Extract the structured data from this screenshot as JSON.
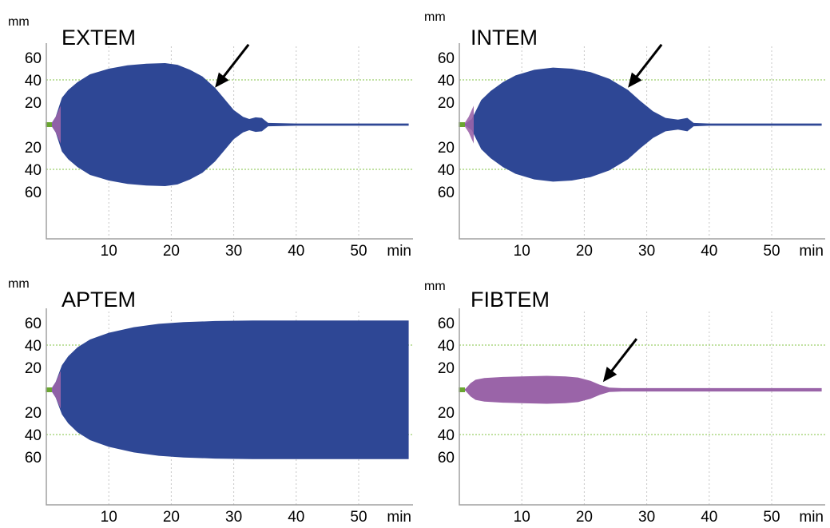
{
  "colors": {
    "amplitude": "#2e4795",
    "fibtem": "#9a64a8",
    "onset": "#9a64a8",
    "baseline_start": "#6aa631",
    "grid_h": "#9ccf6b",
    "arrow": "#000000"
  },
  "chart_data": [
    {
      "type": "area",
      "title": "EXTEM",
      "ylabel": "mm",
      "xlabel": "min",
      "x_ticks": [
        10,
        20,
        30,
        40,
        50
      ],
      "y_ticks_upper": [
        60,
        40,
        20
      ],
      "y_ticks_lower": [
        20,
        40,
        60
      ],
      "xlim": [
        0,
        58
      ],
      "ylim": [
        -70,
        70
      ],
      "grid_h": [
        40,
        -40
      ],
      "fill": "amplitude",
      "arrow": true,
      "arrow_target": [
        27,
        33
      ],
      "envelope": [
        [
          0,
          0
        ],
        [
          0.8,
          1
        ],
        [
          1.5,
          7
        ],
        [
          2.5,
          24
        ],
        [
          3.5,
          31
        ],
        [
          5,
          38
        ],
        [
          7,
          45
        ],
        [
          10,
          50
        ],
        [
          13,
          53
        ],
        [
          16,
          54.5
        ],
        [
          19,
          55
        ],
        [
          21,
          53.5
        ],
        [
          23,
          49
        ],
        [
          25,
          43
        ],
        [
          27,
          33
        ],
        [
          28.5,
          23
        ],
        [
          30,
          13
        ],
        [
          31.5,
          7
        ],
        [
          32.5,
          5
        ],
        [
          33.5,
          6.5
        ],
        [
          34.5,
          6
        ],
        [
          35.5,
          1.5
        ],
        [
          40,
          1
        ],
        [
          58,
          1
        ]
      ]
    },
    {
      "type": "area",
      "title": "INTEM",
      "ylabel": "mm",
      "xlabel": "min",
      "x_ticks": [
        10,
        20,
        30,
        40,
        50
      ],
      "y_ticks_upper": [
        60,
        40,
        20
      ],
      "y_ticks_lower": [
        20,
        40,
        60
      ],
      "xlim": [
        0,
        58
      ],
      "ylim": [
        -70,
        70
      ],
      "grid_h": [
        40,
        -40
      ],
      "fill": "amplitude",
      "arrow": true,
      "arrow_target": [
        27,
        33
      ],
      "envelope": [
        [
          0,
          0
        ],
        [
          1,
          1
        ],
        [
          2,
          5
        ],
        [
          3.5,
          22
        ],
        [
          5,
          30
        ],
        [
          7,
          38
        ],
        [
          9,
          44
        ],
        [
          12,
          49
        ],
        [
          15,
          51
        ],
        [
          18,
          50
        ],
        [
          21,
          47
        ],
        [
          24,
          41
        ],
        [
          27,
          31
        ],
        [
          29,
          21
        ],
        [
          31,
          12
        ],
        [
          33,
          6
        ],
        [
          35,
          4.5
        ],
        [
          36.5,
          6
        ],
        [
          37.5,
          1.5
        ],
        [
          40,
          1
        ],
        [
          58,
          1
        ]
      ]
    },
    {
      "type": "area",
      "title": "APTEM",
      "ylabel": "mm",
      "xlabel": "min",
      "x_ticks": [
        10,
        20,
        30,
        40,
        50
      ],
      "y_ticks_upper": [
        60,
        40,
        20
      ],
      "y_ticks_lower": [
        20,
        40,
        60
      ],
      "xlim": [
        0,
        58
      ],
      "ylim": [
        -70,
        70
      ],
      "grid_h": [
        40,
        -40
      ],
      "fill": "amplitude",
      "arrow": false,
      "envelope": [
        [
          0,
          0
        ],
        [
          0.8,
          1
        ],
        [
          1.5,
          7
        ],
        [
          2.5,
          22
        ],
        [
          3.5,
          30
        ],
        [
          5,
          38
        ],
        [
          7,
          45
        ],
        [
          10,
          51
        ],
        [
          14,
          56
        ],
        [
          18,
          59
        ],
        [
          22,
          60.5
        ],
        [
          27,
          61.5
        ],
        [
          33,
          62
        ],
        [
          40,
          62
        ],
        [
          47,
          62
        ],
        [
          58,
          62
        ]
      ]
    },
    {
      "type": "area",
      "title": "FIBTEM",
      "ylabel": "mm",
      "xlabel": "min",
      "x_ticks": [
        10,
        20,
        30,
        40,
        50
      ],
      "y_ticks_upper": [
        60,
        40,
        20
      ],
      "y_ticks_lower": [
        20,
        40,
        60
      ],
      "xlim": [
        0,
        58
      ],
      "ylim": [
        -70,
        70
      ],
      "grid_h": [
        40,
        -40
      ],
      "fill": "fibtem",
      "arrow": true,
      "arrow_target": [
        23,
        7
      ],
      "envelope": [
        [
          0,
          0
        ],
        [
          1,
          1
        ],
        [
          1.8,
          6
        ],
        [
          2.6,
          9
        ],
        [
          4,
          10.5
        ],
        [
          7,
          11.5
        ],
        [
          10,
          12
        ],
        [
          14,
          12.5
        ],
        [
          17,
          12
        ],
        [
          19,
          11
        ],
        [
          21,
          8
        ],
        [
          22.5,
          4.5
        ],
        [
          24,
          2
        ],
        [
          26,
          1.5
        ],
        [
          30,
          1.5
        ],
        [
          58,
          1.5
        ]
      ]
    }
  ]
}
